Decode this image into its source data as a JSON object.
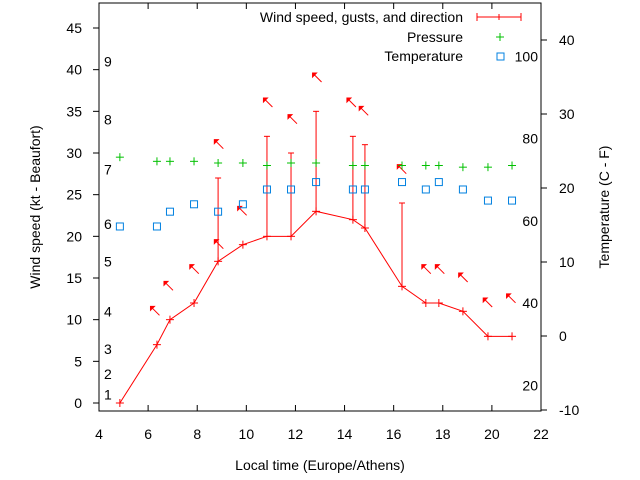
{
  "chart_data": {
    "type": "line",
    "xlabel": "Local time (Europe/Athens)",
    "ylabel": "Wind speed (kt - Beaufort)",
    "y2label": "Temperature (C - F)",
    "xlim": [
      4,
      22
    ],
    "ylim": [
      -1,
      48
    ],
    "y2lim": [
      -10.5,
      44
    ],
    "x_ticks": [
      "4",
      "6",
      "8",
      "10",
      "12",
      "14",
      "16",
      "18",
      "20",
      "22"
    ],
    "y_ticks": [
      "0",
      "5",
      "10",
      "15",
      "20",
      "25",
      "30",
      "35",
      "40",
      "45"
    ],
    "y2_ticks": [
      "-10",
      "0",
      "10",
      "20",
      "30",
      "40"
    ],
    "fahrenheit_labels": [
      "20",
      "40",
      "60",
      "80",
      "100"
    ],
    "beaufort_labels": [
      "1",
      "2",
      "3",
      "4",
      "5",
      "6",
      "7",
      "8",
      "9"
    ],
    "legend": {
      "placement": "top-right",
      "entries": [
        "Wind speed, gusts, and direction",
        "Pressure",
        "Temperature"
      ]
    },
    "colors": {
      "wind": "#ff0000",
      "pressure": "#00c000",
      "temperature": "#0080e0"
    },
    "x": [
      4.85,
      6.36,
      6.89,
      7.87,
      8.85,
      9.86,
      10.84,
      11.82,
      12.84,
      14.34,
      14.83,
      16.34,
      17.31,
      17.84,
      18.82,
      19.84,
      20.82
    ],
    "series": [
      {
        "name": "Wind speed",
        "axis": "left",
        "values": [
          0,
          7,
          10,
          12,
          17,
          19,
          20,
          20,
          23,
          22,
          21,
          14,
          12,
          12,
          11,
          8,
          8
        ]
      },
      {
        "name": "Gusts",
        "axis": "left",
        "values": [
          null,
          null,
          null,
          null,
          27,
          null,
          32,
          30,
          35,
          32,
          31,
          24,
          null,
          null,
          null,
          null,
          null
        ]
      },
      {
        "name": "Pressure",
        "axis": "left",
        "values": [
          29.5,
          29.0,
          29.0,
          29.0,
          28.8,
          28.8,
          28.5,
          28.8,
          28.8,
          28.5,
          28.5,
          28.5,
          28.5,
          28.5,
          28.3,
          28.3,
          28.5
        ]
      },
      {
        "name": "Temperature",
        "axis": "right",
        "unit": "C",
        "values": [
          14.8,
          14.8,
          16.8,
          17.8,
          16.8,
          17.8,
          19.8,
          19.8,
          20.8,
          19.8,
          19.8,
          20.8,
          19.8,
          20.8,
          19.8,
          18.3,
          18.3
        ]
      },
      {
        "name": "Direction",
        "unit": "deg",
        "values": [
          315,
          315,
          315,
          315,
          315,
          315,
          315,
          315,
          315,
          315,
          315,
          315,
          315,
          315,
          330,
          315,
          350
        ]
      }
    ]
  }
}
